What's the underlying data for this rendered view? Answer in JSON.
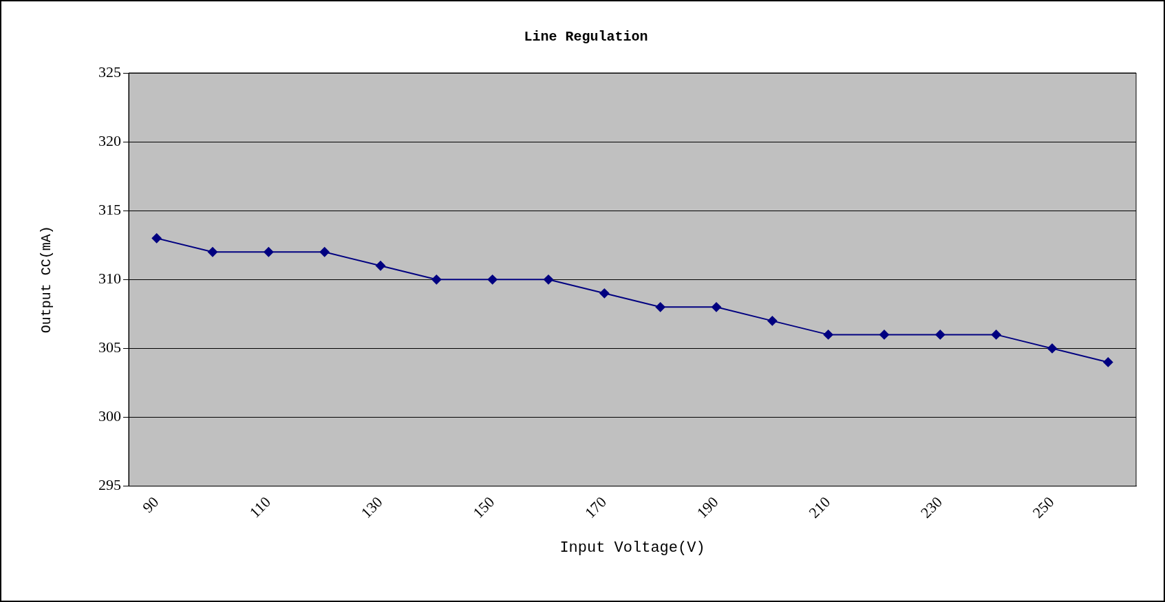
{
  "chart_data": {
    "type": "line",
    "title": "Line Regulation",
    "xlabel": "Input Voltage(V)",
    "ylabel": "Output CC(mA)",
    "categories": [
      "90",
      null,
      "110",
      null,
      "130",
      null,
      "150",
      null,
      "170",
      null,
      "190",
      null,
      "210",
      null,
      "230",
      null,
      "250",
      null
    ],
    "series": [
      {
        "color": "#000080",
        "values": [
          313,
          312,
          312,
          312,
          311,
          310,
          310,
          310,
          309,
          308,
          308,
          307,
          306,
          306,
          306,
          306,
          305,
          304
        ]
      }
    ],
    "ylim": [
      295,
      325
    ],
    "yticks": [
      295,
      300,
      305,
      310,
      315,
      320,
      325
    ],
    "grid": "y",
    "legend": false,
    "marker": "diamond",
    "line_style": "solid"
  }
}
